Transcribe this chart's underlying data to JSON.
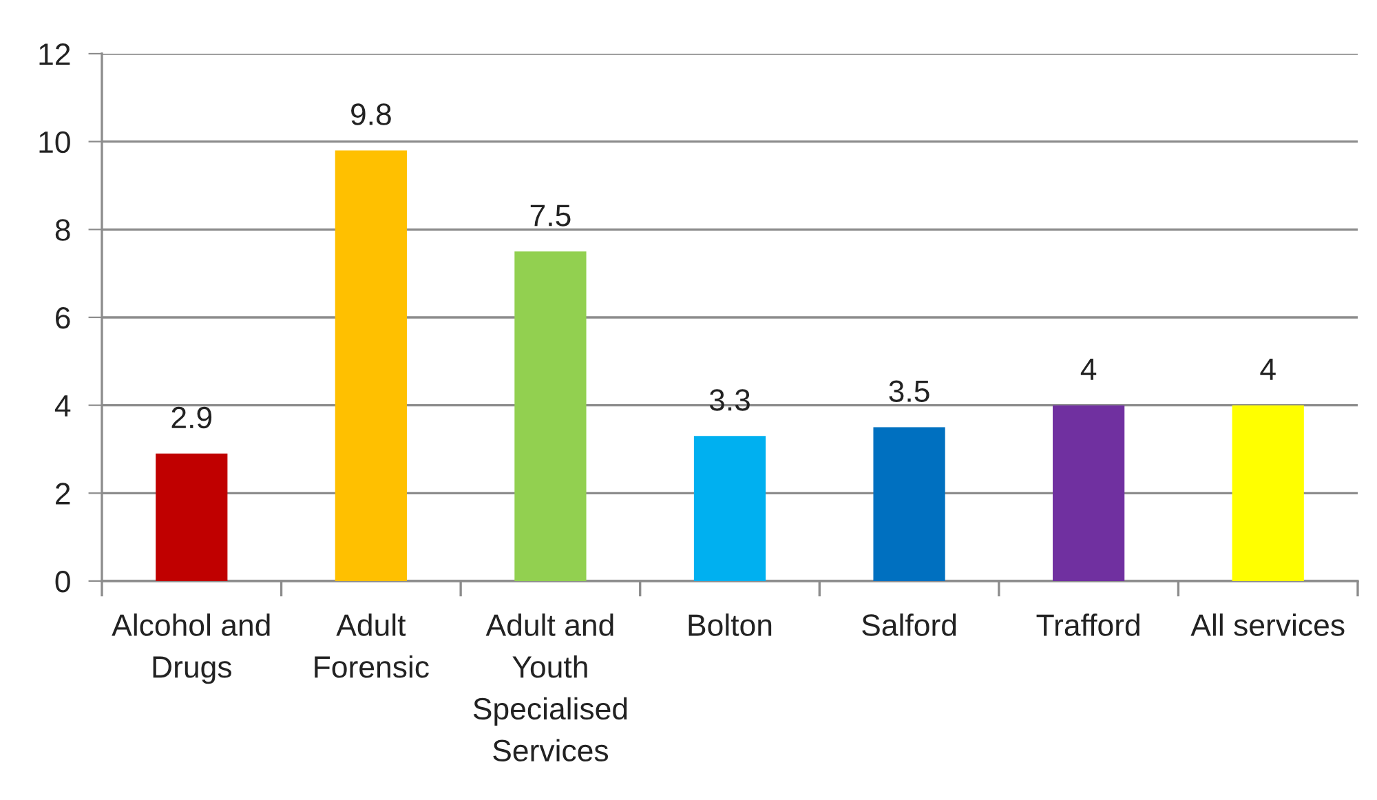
{
  "chart_data": {
    "type": "bar",
    "categories": [
      "Alcohol and Drugs",
      "Adult Forensic",
      "Adult and Youth Specialised Services",
      "Bolton",
      "Salford",
      "Trafford",
      "All services"
    ],
    "values": [
      2.9,
      9.8,
      7.5,
      3.3,
      3.5,
      4,
      4
    ],
    "colors": [
      "#c00000",
      "#ffc000",
      "#92d050",
      "#00b0f0",
      "#0070c0",
      "#7030a0",
      "#ffff00"
    ],
    "ylim": [
      0,
      12
    ],
    "yticks": [
      0,
      2,
      4,
      6,
      8,
      10,
      12
    ],
    "grid": "y",
    "data_labels": true,
    "legend": false
  }
}
